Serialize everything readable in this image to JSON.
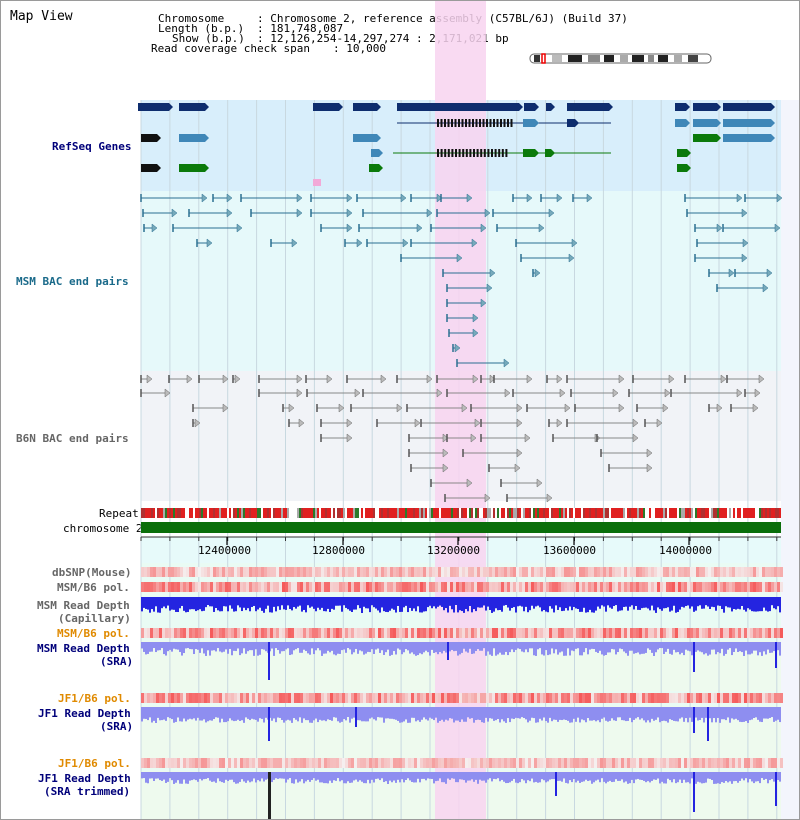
{
  "view_title": "Map View",
  "header": {
    "chromosome_label": "Chromosome",
    "chromosome_value": ": Chromosome 2, reference assembly (C57BL/6J) (Build 37)",
    "length_label": "Length (b.p.)",
    "length_value": ": 181,748,087",
    "show_label": "Show (b.p.)",
    "show_value": ": 12,126,254-14,297,274 : 2,171,021 bp",
    "span_label": "Read coverage check span",
    "span_value": ": 10,000"
  },
  "tracks": {
    "refseq": "RefSeq Genes",
    "msm_bac": "MSM BAC end pairs",
    "b6n_bac": "B6N BAC end pairs",
    "repeat": "Repeat",
    "chromosome": "chromosome 2",
    "dbsnp": "dbSNP(Mouse)",
    "msm_b6_pol": "MSM/B6 pol.",
    "msm_depth_cap_1": "MSM Read Depth",
    "msm_depth_cap_2": "(Capillary)",
    "msm_b6_pol_2": "MSM/B6 pol.",
    "msm_depth_sra_1": "MSM Read Depth",
    "msm_depth_sra_2": "(SRA)",
    "jf1_b6_pol": "JF1/B6 pol.",
    "jf1_depth_sra_1": "JF1 Read Depth",
    "jf1_depth_sra_2": "(SRA)",
    "jf1_b6_pol_2": "JF1/B6 pol.",
    "jf1_depth_trim_1": "JF1 Read Depth",
    "jf1_depth_trim_2": "(SRA trimmed)"
  },
  "axis_ticks": [
    "12400000",
    "12800000",
    "13200000",
    "13600000",
    "14000000"
  ],
  "colors": {
    "refseq_bg": "#d8eefb",
    "msm_bg": "#e6f9fa",
    "b6n_bg": "#f1f3f7",
    "highlight": "#f8d3f0",
    "gene_dark": "#0e2d6e",
    "gene_mid": "#3f87b8",
    "gene_green": "#0b7a0b",
    "msm_line": "#2b6f91",
    "b6n_line": "#888888",
    "repeat_red": "#e02020",
    "chrom_green": "#0a6e0a",
    "depth_blue": "#2424e0",
    "depth_light": "#8e8ef0",
    "label_navy": "#00007a",
    "label_orange": "#e08a00",
    "label_teal": "#1a6a8a"
  }
}
